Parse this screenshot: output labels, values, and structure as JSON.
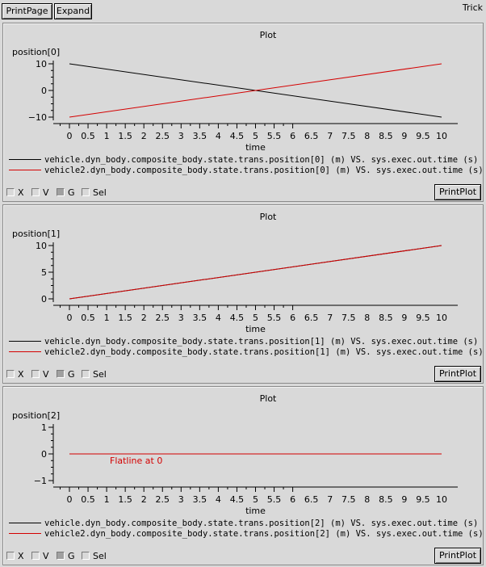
{
  "toolbar": {
    "printpage_label": "PrintPage",
    "expand_label": "Expand"
  },
  "app_label": "Trick",
  "colors": {
    "series1": "#000000",
    "series2": "#d40000",
    "background": "#d9d9d9"
  },
  "panels": [
    {
      "title": "Plot",
      "ylabel": "position[0]",
      "xlabel": "time",
      "yticks": [
        "10",
        "0",
        "−10"
      ],
      "xticks": [
        "0",
        "0.5",
        "1",
        "1.5",
        "2",
        "2.5",
        "3",
        "3.5",
        "4",
        "4.5",
        "5",
        "5.5",
        "6",
        "6.5",
        "7",
        "7.5",
        "8",
        "8.5",
        "9",
        "9.5",
        "10"
      ],
      "legend": [
        "vehicle.dyn_body.composite_body.state.trans.position[0] (m) VS. sys.exec.out.time (s) [RUN_",
        "vehicle2.dyn_body.composite_body.state.trans.position[0] (m) VS. sys.exec.out.time (s) [RUN"
      ],
      "annotation": "",
      "checks": {
        "x": "X",
        "v": "V",
        "g": "G",
        "sel": "Sel"
      },
      "printplot_label": "PrintPlot"
    },
    {
      "title": "Plot",
      "ylabel": "position[1]",
      "xlabel": "time",
      "yticks": [
        "10",
        "5",
        "0"
      ],
      "xticks": [
        "0",
        "0.5",
        "1",
        "1.5",
        "2",
        "2.5",
        "3",
        "3.5",
        "4",
        "4.5",
        "5",
        "5.5",
        "6",
        "6.5",
        "7",
        "7.5",
        "8",
        "8.5",
        "9",
        "9.5",
        "10"
      ],
      "legend": [
        "vehicle.dyn_body.composite_body.state.trans.position[1] (m) VS. sys.exec.out.time (s) [RUN_",
        "vehicle2.dyn_body.composite_body.state.trans.position[1] (m) VS. sys.exec.out.time (s) [RUN"
      ],
      "annotation": "",
      "checks": {
        "x": "X",
        "v": "V",
        "g": "G",
        "sel": "Sel"
      },
      "printplot_label": "PrintPlot"
    },
    {
      "title": "Plot",
      "ylabel": "position[2]",
      "xlabel": "time",
      "yticks": [
        "1",
        "0",
        "−1"
      ],
      "xticks": [
        "0",
        "0.5",
        "1",
        "1.5",
        "2",
        "2.5",
        "3",
        "3.5",
        "4",
        "4.5",
        "5",
        "5.5",
        "6",
        "6.5",
        "7",
        "7.5",
        "8",
        "8.5",
        "9",
        "9.5",
        "10"
      ],
      "legend": [
        "vehicle.dyn_body.composite_body.state.trans.position[2] (m) VS. sys.exec.out.time (s) [RUN_",
        "vehicle2.dyn_body.composite_body.state.trans.position[2] (m) VS. sys.exec.out.time (s) [RUN"
      ],
      "annotation": "Flatline at 0",
      "checks": {
        "x": "X",
        "v": "V",
        "g": "G",
        "sel": "Sel"
      },
      "printplot_label": "PrintPlot"
    }
  ],
  "chart_data": [
    {
      "type": "line",
      "title": "Plot",
      "xlabel": "time",
      "ylabel": "position[0]",
      "xlim": [
        0,
        10
      ],
      "ylim": [
        -10,
        10
      ],
      "grid": false,
      "series": [
        {
          "name": "vehicle.dyn_body.composite_body.state.trans.position[0] (m) VS. sys.exec.out.time (s) [RUN_",
          "color": "#000000",
          "x": [
            0,
            10
          ],
          "y": [
            10,
            -10
          ]
        },
        {
          "name": "vehicle2.dyn_body.composite_body.state.trans.position[0] (m) VS. sys.exec.out.time (s) [RUN",
          "color": "#d40000",
          "x": [
            0,
            10
          ],
          "y": [
            -10,
            10
          ]
        }
      ]
    },
    {
      "type": "line",
      "title": "Plot",
      "xlabel": "time",
      "ylabel": "position[1]",
      "xlim": [
        0,
        10
      ],
      "ylim": [
        0,
        10
      ],
      "grid": false,
      "series": [
        {
          "name": "vehicle.dyn_body.composite_body.state.trans.position[1] (m) VS. sys.exec.out.time (s) [RUN_",
          "color": "#000000",
          "x": [
            0,
            10
          ],
          "y": [
            0,
            10
          ]
        },
        {
          "name": "vehicle2.dyn_body.composite_body.state.trans.position[1] (m) VS. sys.exec.out.time (s) [RUN",
          "color": "#d40000",
          "x": [
            0,
            10
          ],
          "y": [
            0,
            10
          ]
        }
      ]
    },
    {
      "type": "line",
      "title": "Plot",
      "xlabel": "time",
      "ylabel": "position[2]",
      "xlim": [
        0,
        10
      ],
      "ylim": [
        -1,
        1
      ],
      "grid": false,
      "series": [
        {
          "name": "vehicle.dyn_body.composite_body.state.trans.position[2] (m) VS. sys.exec.out.time (s) [RUN_",
          "color": "#000000",
          "x": [
            0,
            10
          ],
          "y": [
            0,
            0
          ]
        },
        {
          "name": "vehicle2.dyn_body.composite_body.state.trans.position[2] (m) VS. sys.exec.out.time (s) [RUN",
          "color": "#d40000",
          "x": [
            0,
            10
          ],
          "y": [
            0,
            0
          ]
        }
      ]
    }
  ]
}
